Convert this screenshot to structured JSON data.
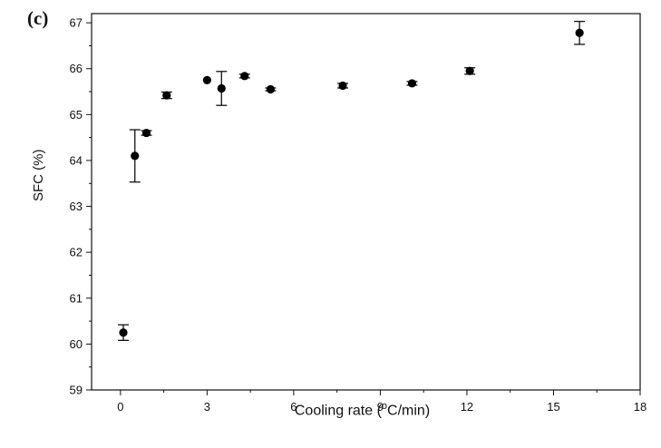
{
  "panel_label": "(c)",
  "chart_data": {
    "type": "scatter",
    "title": "",
    "xlabel_prefix": "Cooling rate (",
    "xlabel_sup": "o",
    "xlabel_suffix": "C/min)",
    "ylabel": "SFC (%)",
    "xlim": [
      -1,
      18
    ],
    "ylim": [
      59,
      67.2
    ],
    "x_ticks": [
      0,
      3,
      6,
      9,
      12,
      15,
      18
    ],
    "y_ticks": [
      59,
      60,
      61,
      62,
      63,
      64,
      65,
      66,
      67
    ],
    "grid": false,
    "marker_color": "#000000",
    "points": [
      {
        "x": 0.1,
        "y": 60.25,
        "err": 0.17
      },
      {
        "x": 0.5,
        "y": 64.1,
        "err": 0.57
      },
      {
        "x": 0.9,
        "y": 64.6,
        "err": 0.05
      },
      {
        "x": 1.6,
        "y": 65.42,
        "err": 0.07
      },
      {
        "x": 3.0,
        "y": 65.75,
        "err": 0.0
      },
      {
        "x": 3.5,
        "y": 65.57,
        "err": 0.37
      },
      {
        "x": 4.3,
        "y": 65.84,
        "err": 0.04
      },
      {
        "x": 5.2,
        "y": 65.55,
        "err": 0.03
      },
      {
        "x": 7.7,
        "y": 65.63,
        "err": 0.05
      },
      {
        "x": 10.1,
        "y": 65.68,
        "err": 0.04
      },
      {
        "x": 12.1,
        "y": 65.95,
        "err": 0.07
      },
      {
        "x": 15.9,
        "y": 66.78,
        "err": 0.25
      }
    ]
  }
}
